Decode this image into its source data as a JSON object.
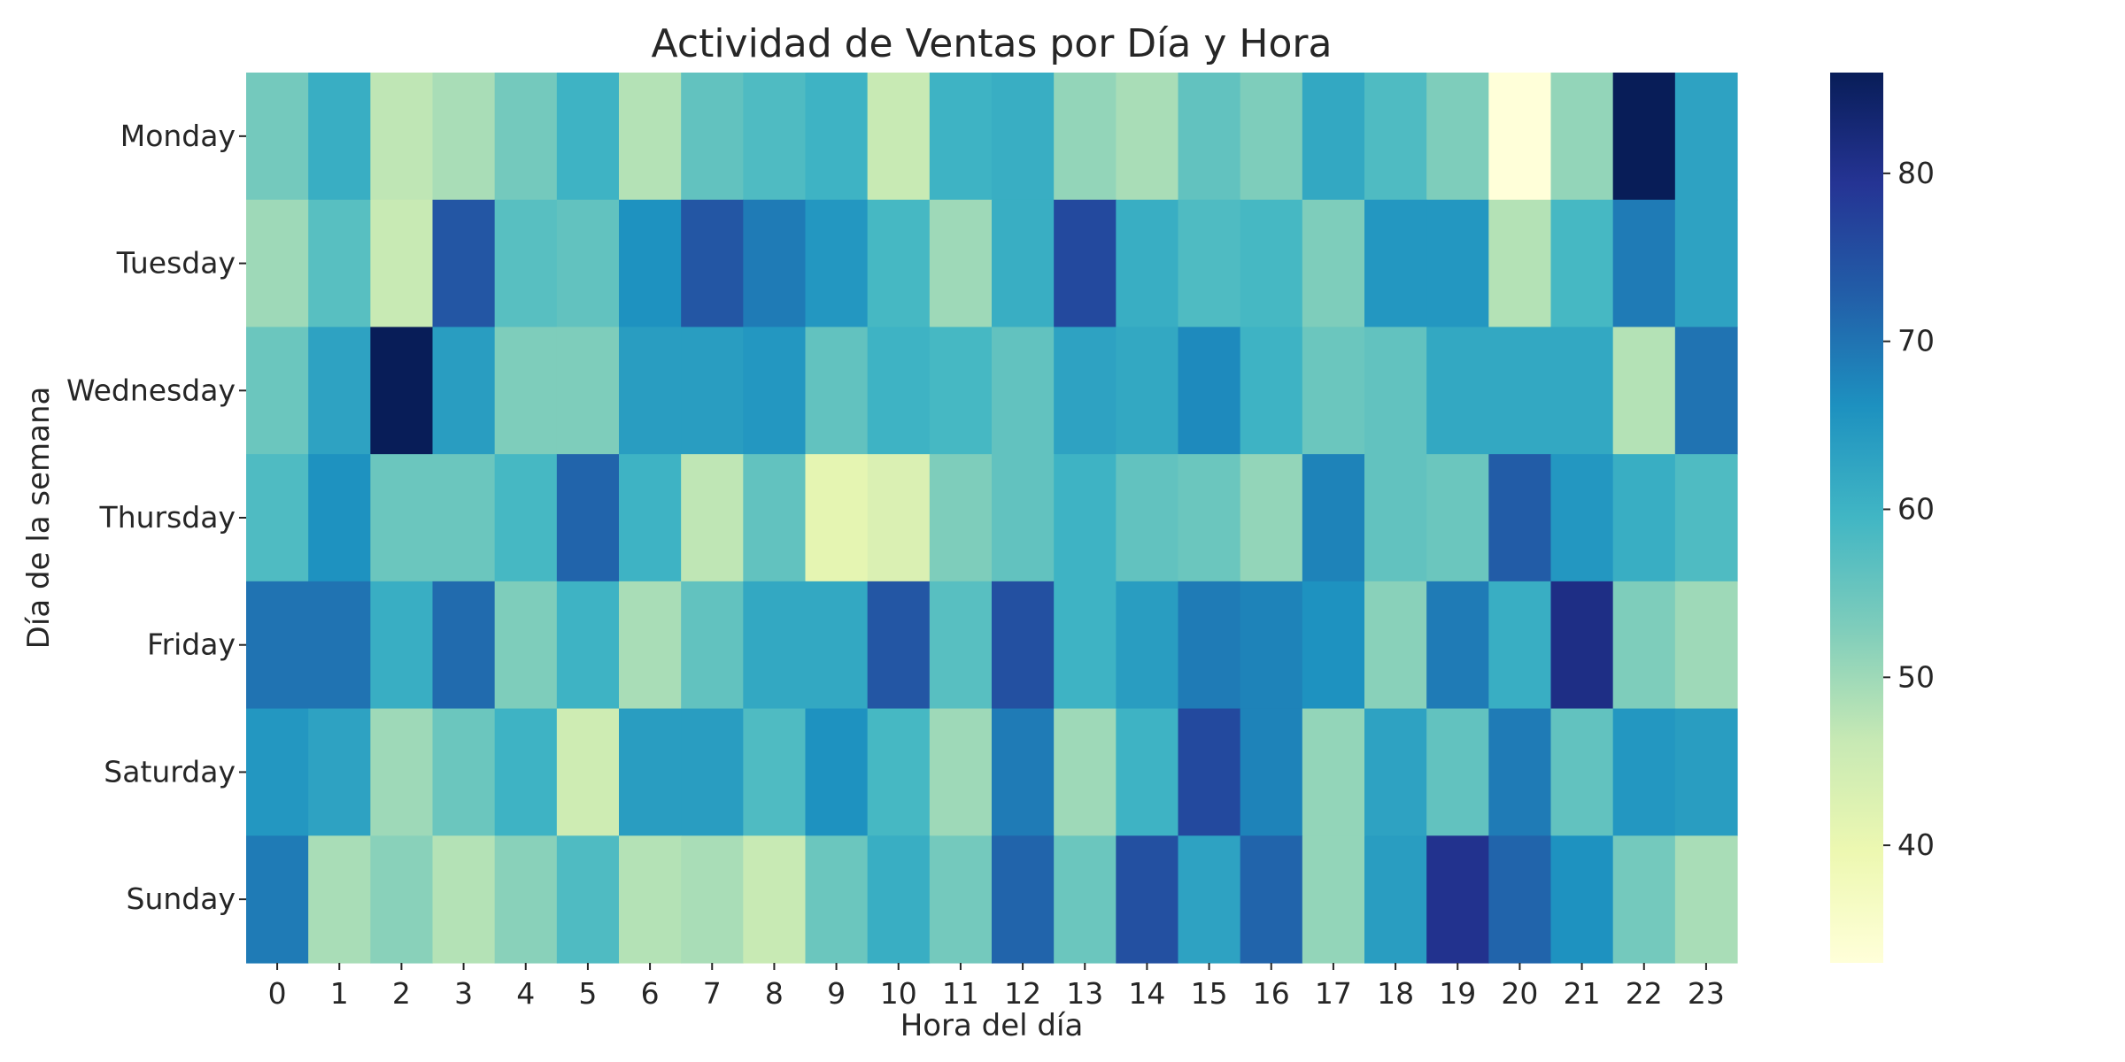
{
  "chart_data": {
    "type": "heatmap",
    "title": "Actividad de Ventas por Día y Hora",
    "xlabel": "Hora del día",
    "ylabel": "Día de la semana",
    "x_categories": [
      "0",
      "1",
      "2",
      "3",
      "4",
      "5",
      "6",
      "7",
      "8",
      "9",
      "10",
      "11",
      "12",
      "13",
      "14",
      "15",
      "16",
      "17",
      "18",
      "19",
      "20",
      "21",
      "22",
      "23"
    ],
    "y_categories": [
      "Monday",
      "Tuesday",
      "Wednesday",
      "Thursday",
      "Friday",
      "Saturday",
      "Sunday"
    ],
    "values": [
      [
        54,
        61,
        47,
        49,
        54,
        60,
        48,
        56,
        58,
        60,
        46,
        60,
        61,
        51,
        49,
        56,
        53,
        62,
        58,
        53,
        33,
        51,
        86,
        63
      ],
      [
        50,
        57,
        46,
        74,
        57,
        56,
        66,
        74,
        69,
        65,
        59,
        50,
        61,
        76,
        61,
        58,
        59,
        53,
        65,
        65,
        48,
        59,
        69,
        63
      ],
      [
        55,
        63,
        86,
        64,
        53,
        53,
        64,
        64,
        65,
        56,
        60,
        59,
        56,
        63,
        62,
        67,
        60,
        55,
        56,
        62,
        62,
        62,
        48,
        70
      ],
      [
        58,
        66,
        55,
        55,
        59,
        72,
        60,
        47,
        56,
        41,
        43,
        53,
        56,
        60,
        56,
        55,
        51,
        68,
        56,
        55,
        73,
        65,
        61,
        58
      ],
      [
        70,
        70,
        61,
        71,
        53,
        60,
        49,
        56,
        62,
        62,
        74,
        57,
        75,
        60,
        64,
        69,
        68,
        66,
        52,
        69,
        61,
        81,
        53,
        50
      ],
      [
        65,
        63,
        50,
        55,
        60,
        45,
        64,
        64,
        58,
        66,
        59,
        50,
        69,
        50,
        60,
        76,
        68,
        51,
        63,
        56,
        69,
        56,
        65,
        64
      ],
      [
        69,
        49,
        52,
        48,
        52,
        58,
        48,
        49,
        46,
        55,
        61,
        54,
        72,
        55,
        75,
        63,
        72,
        51,
        64,
        80,
        72,
        66,
        54,
        49
      ]
    ],
    "vmin": 33,
    "vmax": 86,
    "colorscale": "YlGnBu",
    "colorbar_ticks": [
      40,
      50,
      60,
      70,
      80
    ],
    "colorbar_position": "right",
    "grid": false
  }
}
